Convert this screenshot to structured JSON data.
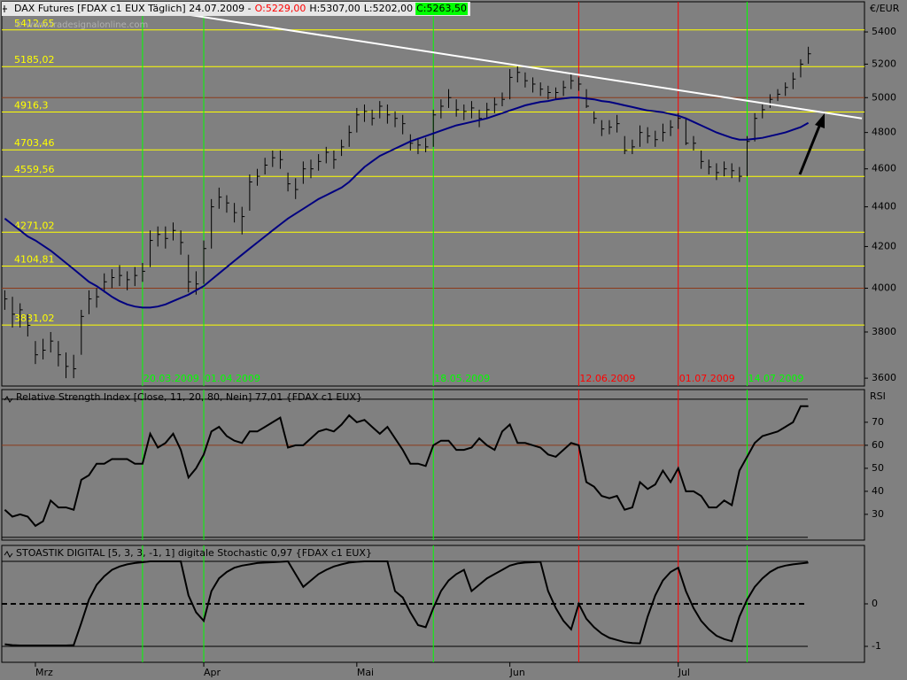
{
  "chart_data": [
    {
      "type": "ohlc",
      "title": "DAX Futures [FDAX c1 EUX  Täglich] 24.07.2009 -",
      "quote": [
        "O:5229,00",
        "H:5307,00",
        "L:5202,00",
        "C:5263,50"
      ],
      "watermark": "© www.tradesignalonline.com",
      "y_axis_label": "€/EUR",
      "log_scale": true,
      "ylim": [
        3567,
        5594
      ],
      "yticks": [
        3600,
        3800,
        4000,
        4200,
        4400,
        4600,
        4800,
        5000,
        5200,
        5400
      ],
      "grid_lines": [
        4000,
        5000
      ],
      "grid_color": "#8b3a1a",
      "categories": [
        null,
        null,
        null,
        null,
        "Mrz",
        null,
        null,
        null,
        null,
        null,
        null,
        null,
        null,
        null,
        null,
        null,
        null,
        null,
        null,
        null,
        null,
        null,
        null,
        null,
        null,
        null,
        "Apr",
        null,
        null,
        null,
        null,
        null,
        null,
        null,
        null,
        null,
        null,
        null,
        null,
        null,
        null,
        null,
        null,
        null,
        null,
        null,
        "Mai",
        null,
        null,
        null,
        null,
        null,
        null,
        null,
        null,
        null,
        null,
        null,
        null,
        null,
        null,
        null,
        null,
        null,
        null,
        null,
        "Jun",
        null,
        null,
        null,
        null,
        null,
        null,
        null,
        null,
        null,
        null,
        null,
        null,
        null,
        null,
        null,
        null,
        null,
        null,
        null,
        null,
        null,
        "Jul",
        null,
        null,
        null,
        null,
        null,
        null,
        null,
        null,
        null,
        null,
        null,
        null,
        null,
        null,
        null,
        null,
        null
      ],
      "bar_color": "#000000",
      "high": [
        3990,
        3960,
        3930,
        3880,
        3760,
        3770,
        3800,
        3760,
        3710,
        3700,
        3900,
        3990,
        4000,
        4070,
        4090,
        4110,
        4080,
        4100,
        4120,
        4280,
        4300,
        4300,
        4320,
        4280,
        4160,
        4080,
        4230,
        4440,
        4500,
        4460,
        4420,
        4400,
        4570,
        4600,
        4660,
        4700,
        4700,
        4580,
        4550,
        4640,
        4650,
        4680,
        4720,
        4700,
        4760,
        4840,
        4940,
        4960,
        4930,
        4980,
        4960,
        4920,
        4900,
        4790,
        4770,
        4770,
        4930,
        4990,
        5050,
        4990,
        4960,
        4980,
        4930,
        4970,
        5000,
        5030,
        5170,
        5190,
        5150,
        5120,
        5090,
        5070,
        5060,
        5100,
        5140,
        5120,
        5050,
        4920,
        4870,
        4870,
        4900,
        4780,
        4760,
        4840,
        4830,
        4810,
        4850,
        4870,
        4910,
        4880,
        4780,
        4700,
        4650,
        4630,
        4640,
        4630,
        4610,
        4780,
        4910,
        4960,
        5020,
        5050,
        5090,
        5150,
        5230,
        5307
      ],
      "low": [
        3900,
        3820,
        3820,
        3780,
        3660,
        3680,
        3710,
        3650,
        3600,
        3600,
        3700,
        3880,
        3910,
        3980,
        4000,
        4010,
        3990,
        4010,
        4030,
        4100,
        4200,
        4190,
        4230,
        4160,
        3980,
        3970,
        4020,
        4190,
        4390,
        4370,
        4320,
        4260,
        4380,
        4510,
        4570,
        4610,
        4600,
        4480,
        4440,
        4520,
        4550,
        4590,
        4630,
        4600,
        4670,
        4720,
        4800,
        4860,
        4840,
        4880,
        4850,
        4830,
        4790,
        4700,
        4680,
        4690,
        4720,
        4880,
        4940,
        4890,
        4870,
        4880,
        4830,
        4880,
        4910,
        4950,
        4990,
        5090,
        5060,
        5030,
        5010,
        4990,
        4990,
        5010,
        5050,
        5040,
        4940,
        4850,
        4780,
        4790,
        4800,
        4680,
        4680,
        4720,
        4740,
        4720,
        4750,
        4780,
        4820,
        4730,
        4700,
        4600,
        4570,
        4540,
        4560,
        4550,
        4530,
        4560,
        4750,
        4880,
        4940,
        4980,
        5010,
        5050,
        5120,
        5202
      ],
      "close": [
        3950,
        3880,
        3900,
        3830,
        3700,
        3720,
        3760,
        3700,
        3650,
        3640,
        3870,
        3950,
        3960,
        4030,
        4050,
        4060,
        4040,
        4060,
        4080,
        4230,
        4260,
        4240,
        4280,
        4220,
        4030,
        4020,
        4190,
        4400,
        4450,
        4420,
        4370,
        4350,
        4530,
        4560,
        4620,
        4660,
        4650,
        4520,
        4490,
        4600,
        4600,
        4640,
        4690,
        4650,
        4720,
        4800,
        4900,
        4920,
        4880,
        4950,
        4900,
        4880,
        4850,
        4740,
        4730,
        4720,
        4900,
        4950,
        5000,
        4930,
        4920,
        4940,
        4880,
        4930,
        4960,
        4990,
        5120,
        5150,
        5100,
        5080,
        5050,
        5030,
        5030,
        5060,
        5100,
        5080,
        4950,
        4880,
        4820,
        4830,
        4850,
        4700,
        4720,
        4800,
        4780,
        4760,
        4800,
        4830,
        4880,
        4740,
        4740,
        4640,
        4610,
        4580,
        4600,
        4590,
        4560,
        4750,
        4880,
        4930,
        4990,
        5020,
        5060,
        5110,
        5200,
        5263.5
      ],
      "moving_average": {
        "color": "#000080",
        "values": [
          4340,
          4310,
          4280,
          4250,
          4230,
          4205,
          4180,
          4150,
          4120,
          4090,
          4060,
          4030,
          4010,
          3985,
          3960,
          3940,
          3925,
          3915,
          3910,
          3910,
          3915,
          3925,
          3940,
          3955,
          3970,
          3990,
          4010,
          4040,
          4070,
          4100,
          4130,
          4160,
          4190,
          4220,
          4250,
          4280,
          4310,
          4340,
          4365,
          4390,
          4415,
          4440,
          4460,
          4480,
          4500,
          4530,
          4570,
          4610,
          4640,
          4670,
          4690,
          4710,
          4730,
          4750,
          4765,
          4780,
          4795,
          4810,
          4825,
          4840,
          4850,
          4860,
          4870,
          4880,
          4895,
          4910,
          4925,
          4940,
          4955,
          4965,
          4975,
          4980,
          4990,
          4995,
          5000,
          5000,
          4995,
          4990,
          4980,
          4975,
          4965,
          4955,
          4945,
          4935,
          4925,
          4920,
          4915,
          4905,
          4895,
          4880,
          4860,
          4840,
          4820,
          4800,
          4785,
          4770,
          4760,
          4760,
          4765,
          4770,
          4780,
          4790,
          4800,
          4815,
          4830,
          4855
        ]
      },
      "trendline": {
        "color": "#ffffff",
        "points": [
          [
            22,
            5525
          ],
          [
            112,
            4880
          ]
        ]
      },
      "level_color": "#ffff00",
      "levels": [
        {
          "value": 5412.65,
          "label": "5412,65"
        },
        {
          "value": 5185.02,
          "label": "5185,02"
        },
        {
          "value": 4916.3,
          "label": "4916,3"
        },
        {
          "value": 4703.46,
          "label": "4703,46"
        },
        {
          "value": 4559.56,
          "label": "4559,56"
        },
        {
          "value": 4271.02,
          "label": "4271,02"
        },
        {
          "value": 4104.81,
          "label": "4104,81"
        },
        {
          "value": 3831.02,
          "label": "3831,02"
        }
      ],
      "markers": [
        {
          "index": 18,
          "label": "20.03.2009",
          "color": "#00ff00"
        },
        {
          "index": 26,
          "label": "01.04.2009",
          "color": "#00ff00"
        },
        {
          "index": 56,
          "label": "18.05.2009",
          "color": "#00ff00"
        },
        {
          "index": 75,
          "label": "12.06.2009",
          "color": "#ff0000"
        },
        {
          "index": 88,
          "label": "01.07.2009",
          "color": "#ff0000"
        },
        {
          "index": 97,
          "label": "14.07.2009",
          "color": "#00ff00"
        }
      ]
    },
    {
      "type": "line",
      "title": "Relative Strength Index [Close, 11, 20, 80, Nein] 77,01 {FDAX c1 EUX}",
      "y_axis_label": "RSI",
      "ylim": [
        18.8,
        84.2
      ],
      "yticks": [
        30,
        40,
        50,
        60,
        70
      ],
      "grid_lines": [
        60
      ],
      "grid_color": "#8b3a1a",
      "bands": [
        20,
        80
      ],
      "color": "#000000",
      "values": [
        32,
        29,
        30,
        29,
        25,
        27,
        36,
        33,
        33,
        32,
        45,
        47,
        52,
        52,
        54,
        54,
        54,
        52,
        52,
        65,
        59,
        61,
        65,
        58,
        46,
        50,
        56,
        66,
        68,
        64,
        62,
        61,
        66,
        66,
        68,
        70,
        72,
        59,
        60,
        60,
        63,
        66,
        67,
        66,
        69,
        73,
        70,
        71,
        68,
        65,
        68,
        63,
        58,
        52,
        52,
        51,
        60,
        62,
        62,
        58,
        58,
        59,
        63,
        60,
        58,
        66,
        69,
        61,
        61,
        60,
        59,
        56,
        55,
        58,
        61,
        60,
        44,
        42,
        38,
        37,
        38,
        32,
        33,
        44,
        41,
        43,
        49,
        44,
        50,
        40,
        40,
        38,
        33,
        33,
        36,
        34,
        49,
        55,
        61,
        64,
        65,
        66,
        68,
        70,
        77,
        77.01
      ]
    },
    {
      "type": "line",
      "title": "STOASTIK DIGITAL [5, 3, 3, -1, 1] digitale Stochastic 0,97 {FDAX c1 EUX}",
      "ylim": [
        -1.375,
        1.375
      ],
      "yticks": [
        -1,
        0
      ],
      "bands": [
        -1,
        1
      ],
      "dashed_lines": [
        0
      ],
      "color": "#000000",
      "values": [
        -0.95,
        -0.97,
        -0.98,
        -0.98,
        -0.98,
        -0.98,
        -0.98,
        -0.98,
        -0.98,
        -0.97,
        -0.45,
        0.1,
        0.45,
        0.65,
        0.8,
        0.88,
        0.93,
        0.96,
        0.98,
        1,
        1,
        1,
        1,
        1,
        0.2,
        -0.2,
        -0.4,
        0.3,
        0.6,
        0.75,
        0.85,
        0.9,
        0.93,
        0.96,
        0.97,
        0.98,
        0.99,
        1,
        0.7,
        0.4,
        0.55,
        0.7,
        0.8,
        0.88,
        0.93,
        0.97,
        0.99,
        1,
        1,
        1,
        1,
        0.3,
        0.15,
        -0.2,
        -0.5,
        -0.55,
        -0.1,
        0.3,
        0.55,
        0.7,
        0.8,
        0.3,
        0.45,
        0.6,
        0.7,
        0.8,
        0.9,
        0.95,
        0.97,
        0.98,
        0.99,
        0.3,
        -0.1,
        -0.4,
        -0.6,
        0,
        -0.35,
        -0.55,
        -0.7,
        -0.8,
        -0.85,
        -0.9,
        -0.92,
        -0.93,
        -0.3,
        0.2,
        0.55,
        0.75,
        0.85,
        0.3,
        -0.1,
        -0.4,
        -0.6,
        -0.75,
        -0.83,
        -0.88,
        -0.3,
        0.1,
        0.4,
        0.6,
        0.75,
        0.85,
        0.9,
        0.93,
        0.95,
        0.97
      ]
    }
  ]
}
